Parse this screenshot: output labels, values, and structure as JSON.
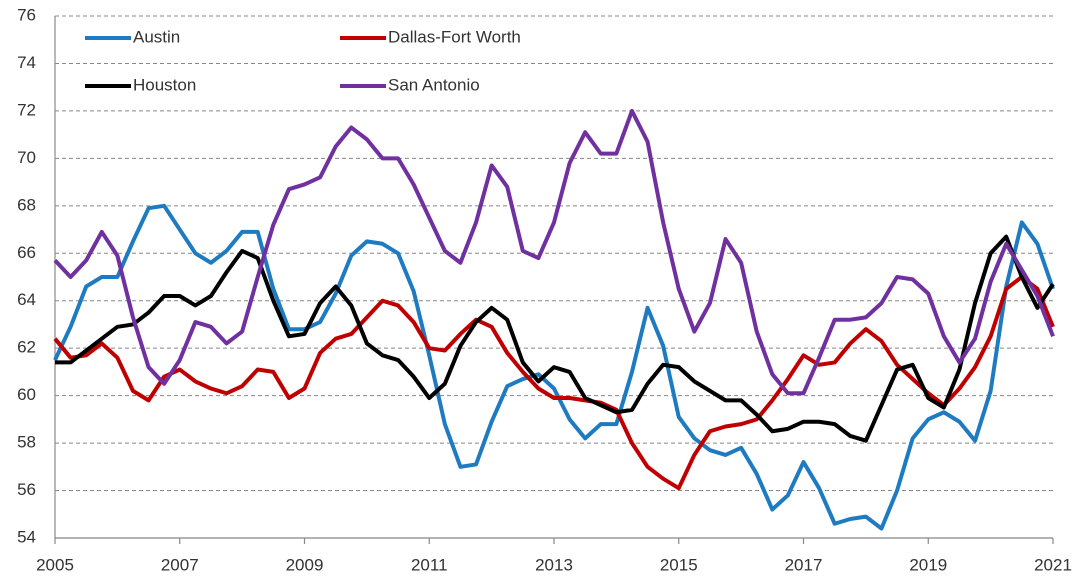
{
  "chart_data": {
    "type": "line",
    "x": [
      2005,
      2005.25,
      2005.5,
      2005.75,
      2006,
      2006.25,
      2006.5,
      2006.75,
      2007,
      2007.25,
      2007.5,
      2007.75,
      2008,
      2008.25,
      2008.5,
      2008.75,
      2009,
      2009.25,
      2009.5,
      2009.75,
      2010,
      2010.25,
      2010.5,
      2010.75,
      2011,
      2011.25,
      2011.5,
      2011.75,
      2012,
      2012.25,
      2012.5,
      2012.75,
      2013,
      2013.25,
      2013.5,
      2013.75,
      2014,
      2014.25,
      2014.5,
      2014.75,
      2015,
      2015.25,
      2015.5,
      2015.75,
      2016,
      2016.25,
      2016.5,
      2016.75,
      2017,
      2017.25,
      2017.5,
      2017.75,
      2018,
      2018.25,
      2018.5,
      2018.75,
      2019,
      2019.25,
      2019.5,
      2019.75,
      2020,
      2020.25,
      2020.5,
      2020.75,
      2021
    ],
    "series": [
      {
        "name": "Austin",
        "color": "#1f7bc1",
        "values": [
          61.5,
          62.9,
          64.6,
          65.0,
          65.0,
          66.5,
          67.9,
          68.0,
          67.0,
          66.0,
          65.6,
          66.1,
          66.9,
          66.9,
          64.5,
          62.8,
          62.8,
          63.1,
          64.3,
          65.9,
          66.5,
          66.4,
          66.0,
          64.4,
          61.7,
          58.8,
          57.0,
          57.1,
          58.9,
          60.4,
          60.7,
          60.9,
          60.3,
          59.0,
          58.2,
          58.8,
          58.8,
          61.0,
          63.7,
          62.1,
          59.1,
          58.2,
          57.7,
          57.5,
          57.8,
          56.7,
          55.2,
          55.8,
          57.2,
          56.1,
          54.6,
          54.8,
          54.9,
          54.4,
          56.0,
          58.2,
          59.0,
          59.3,
          58.9,
          58.1,
          60.2,
          64.6,
          67.3,
          66.4,
          64.5
        ]
      },
      {
        "name": "Dallas-Fort Worth",
        "color": "#c00000",
        "values": [
          62.4,
          61.6,
          61.7,
          62.2,
          61.6,
          60.2,
          59.8,
          60.8,
          61.1,
          60.6,
          60.3,
          60.1,
          60.4,
          61.1,
          61.0,
          59.9,
          60.3,
          61.8,
          62.4,
          62.6,
          63.3,
          64.0,
          63.8,
          63.1,
          62.0,
          61.9,
          62.6,
          63.2,
          62.9,
          61.8,
          61.0,
          60.3,
          59.9,
          59.9,
          59.8,
          59.7,
          59.4,
          58.0,
          57.0,
          56.5,
          56.1,
          57.5,
          58.5,
          58.7,
          58.8,
          59.0,
          59.8,
          60.7,
          61.7,
          61.3,
          61.4,
          62.2,
          62.8,
          62.3,
          61.3,
          60.7,
          60.1,
          59.6,
          60.3,
          61.2,
          62.5,
          64.5,
          65.0,
          64.5,
          62.9
        ]
      },
      {
        "name": "Houston",
        "color": "#000000",
        "values": [
          61.4,
          61.4,
          61.9,
          62.4,
          62.9,
          63.0,
          63.5,
          64.2,
          64.2,
          63.8,
          64.2,
          65.2,
          66.1,
          65.8,
          64.0,
          62.5,
          62.6,
          63.9,
          64.6,
          63.8,
          62.2,
          61.7,
          61.5,
          60.8,
          59.9,
          60.5,
          62.1,
          63.1,
          63.7,
          63.2,
          61.4,
          60.6,
          61.2,
          61.0,
          59.9,
          59.6,
          59.3,
          59.4,
          60.5,
          61.3,
          61.2,
          60.6,
          60.2,
          59.8,
          59.8,
          59.2,
          58.5,
          58.6,
          58.9,
          58.9,
          58.8,
          58.3,
          58.1,
          59.6,
          61.1,
          61.3,
          59.9,
          59.5,
          61.1,
          63.9,
          66.0,
          66.7,
          65.0,
          63.7,
          64.7
        ]
      },
      {
        "name": "San Antonio",
        "color": "#7030a0",
        "values": [
          65.7,
          65.0,
          65.7,
          66.9,
          65.9,
          63.3,
          61.2,
          60.5,
          61.5,
          63.1,
          62.9,
          62.2,
          62.7,
          65.0,
          67.2,
          68.7,
          68.9,
          69.2,
          70.5,
          71.3,
          70.8,
          70.0,
          70.0,
          68.9,
          67.5,
          66.1,
          65.6,
          67.3,
          69.7,
          68.8,
          66.1,
          65.8,
          67.3,
          69.8,
          71.1,
          70.2,
          70.2,
          72.0,
          70.7,
          67.3,
          64.5,
          62.7,
          63.9,
          66.6,
          65.6,
          62.7,
          60.9,
          60.1,
          60.1,
          61.6,
          63.2,
          63.2,
          63.3,
          63.9,
          65.0,
          64.9,
          64.3,
          62.5,
          61.4,
          62.4,
          64.8,
          66.4,
          65.3,
          64.2,
          62.5
        ]
      }
    ],
    "xlim": [
      2005,
      2021
    ],
    "xticks": [
      2005,
      2007,
      2009,
      2011,
      2013,
      2015,
      2017,
      2019,
      2021
    ],
    "ylim": [
      54,
      76
    ],
    "yticks": [
      54,
      56,
      58,
      60,
      62,
      64,
      66,
      68,
      70,
      72,
      74,
      76
    ],
    "grid": true
  }
}
